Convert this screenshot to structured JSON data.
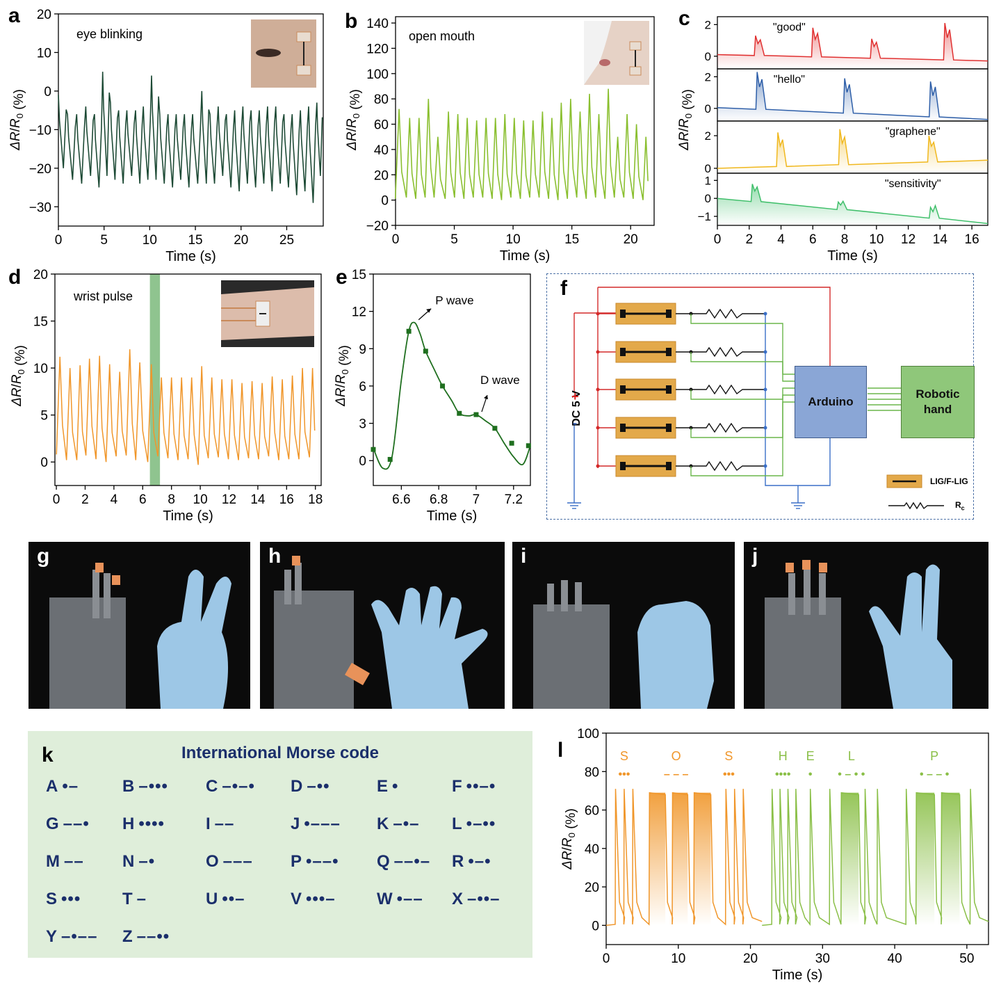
{
  "panel_letters": {
    "a": "a",
    "b": "b",
    "c": "c",
    "d": "d",
    "e": "e",
    "f": "f",
    "g": "g",
    "h": "h",
    "i": "i",
    "j": "j",
    "k": "k",
    "l": "l"
  },
  "chart_data": [
    {
      "id": "a",
      "type": "line",
      "annotation": "eye blinking",
      "xlabel": "Time (s)",
      "ylabel": "ΔR/R0 (%)",
      "xlim": [
        0,
        29
      ],
      "ylim": [
        -35,
        20
      ],
      "xticks": [
        0,
        5,
        10,
        15,
        20,
        25
      ],
      "yticks": [
        -30,
        -20,
        -10,
        0,
        10,
        20
      ],
      "ytick_labels": [
        "−30",
        "−20",
        "−10",
        "0",
        "10",
        "20"
      ],
      "color": "#1d4a35",
      "peak_times": [
        0,
        1.0,
        2.0,
        3.0,
        3.95,
        4.85,
        5.7,
        6.6,
        7.5,
        8.45,
        9.3,
        10.2,
        11.1,
        12.0,
        12.9,
        13.8,
        14.7,
        15.7,
        16.6,
        17.5,
        18.4,
        19.3,
        20.2,
        21.1,
        22.0,
        22.9,
        23.8,
        24.7,
        25.6,
        26.5,
        27.4,
        28.3
      ],
      "peak_values": [
        -1,
        -6,
        -6,
        -4,
        -6,
        5,
        -3,
        -5,
        -5,
        -5,
        -4,
        4,
        -6,
        -6,
        -6,
        -6,
        -6,
        0,
        -6,
        -4,
        -6,
        -5,
        -4,
        -5,
        -5,
        -4,
        -4,
        -6,
        -6,
        -5,
        -4,
        -3
      ],
      "trough_values": [
        -20,
        -23,
        -24,
        -22,
        -25,
        -22,
        -23,
        -24,
        -22,
        -24,
        -23,
        -23,
        -24,
        -25,
        -23,
        -25,
        -24,
        -24,
        -24,
        -22,
        -25,
        -26,
        -24,
        -25,
        -24,
        -26,
        -24,
        -25,
        -27,
        -26,
        -29,
        -22
      ]
    },
    {
      "id": "b",
      "type": "line",
      "annotation": "open mouth",
      "xlabel": "Time (s)",
      "ylabel": "ΔR/R0 (%)",
      "xlim": [
        0,
        22
      ],
      "ylim": [
        -20,
        145
      ],
      "xticks": [
        0,
        5,
        10,
        15,
        20
      ],
      "yticks": [
        -20,
        0,
        20,
        40,
        60,
        80,
        100,
        120,
        140
      ],
      "ytick_labels": [
        "−20",
        "0",
        "20",
        "40",
        "60",
        "80",
        "100",
        "120",
        "140"
      ],
      "color": "#8abf2f",
      "peak_times": [
        0.3,
        1.2,
        2.0,
        2.8,
        3.6,
        4.5,
        5.3,
        6.1,
        6.9,
        7.7,
        8.5,
        9.3,
        10.1,
        10.9,
        11.7,
        12.5,
        13.3,
        14.1,
        14.9,
        15.7,
        16.5,
        17.3,
        18.1,
        18.9,
        19.7,
        20.5,
        21.3
      ],
      "peak_values": [
        72,
        65,
        65,
        80,
        50,
        70,
        68,
        65,
        63,
        65,
        65,
        68,
        65,
        63,
        63,
        70,
        65,
        77,
        80,
        70,
        84,
        68,
        88,
        50,
        68,
        60,
        50
      ],
      "trough_values": [
        1,
        2,
        1,
        2,
        2,
        1,
        2,
        1,
        2,
        2,
        1,
        0,
        2,
        1,
        2,
        2,
        1,
        0,
        1,
        2,
        1,
        2,
        1,
        2,
        2,
        1,
        0
      ]
    },
    {
      "id": "c",
      "type": "line",
      "xlabel": "Time (s)",
      "ylabel": "ΔR/R0 (%)",
      "xlim": [
        0,
        17
      ],
      "xticks": [
        0,
        2,
        4,
        6,
        8,
        10,
        12,
        14,
        16
      ],
      "series": [
        {
          "name": "\"good\"",
          "color": "#e03030",
          "ylim": [
            -0.8,
            2.5
          ],
          "yticks": [
            0,
            2
          ],
          "baseline_start": 0.1,
          "baseline_end": -0.3,
          "events": [
            [
              2.4,
              1.3
            ],
            [
              6.0,
              1.8
            ],
            [
              9.7,
              1.1
            ],
            [
              14.3,
              2.1
            ]
          ]
        },
        {
          "name": "\"hello\"",
          "color": "#2d5ea8",
          "ylim": [
            -0.8,
            2.5
          ],
          "yticks": [
            0,
            2
          ],
          "baseline_start": 0.05,
          "baseline_end": -0.7,
          "events": [
            [
              2.5,
              2.3
            ],
            [
              8.0,
              1.9
            ],
            [
              13.4,
              1.7
            ]
          ]
        },
        {
          "name": "\"graphene\"",
          "color": "#f0b81e",
          "ylim": [
            -0.3,
            2.9
          ],
          "yticks": [
            0,
            2
          ],
          "baseline_start": 0.0,
          "baseline_end": 0.5,
          "events": [
            [
              3.8,
              2.2
            ],
            [
              7.7,
              2.4
            ],
            [
              13.3,
              2.0
            ]
          ]
        },
        {
          "name": "\"sensitivity\"",
          "color": "#3fbf6a",
          "ylim": [
            -1.5,
            1.4
          ],
          "yticks": [
            -1,
            0,
            1
          ],
          "yticks_labels": [
            "−1",
            "0",
            "1"
          ],
          "baseline_start": 0.0,
          "baseline_end": -1.4,
          "events": [
            [
              2.2,
              0.8
            ],
            [
              7.6,
              -0.2
            ],
            [
              13.4,
              -0.5
            ]
          ]
        }
      ]
    },
    {
      "id": "d",
      "type": "line",
      "annotation": "wrist pulse",
      "xlabel": "Time (s)",
      "ylabel": "ΔR/R0 (%)",
      "xlim": [
        -0.1,
        18.4
      ],
      "ylim": [
        -2.5,
        20
      ],
      "xticks": [
        0,
        2,
        4,
        6,
        8,
        10,
        12,
        14,
        16,
        18
      ],
      "yticks": [
        0,
        5,
        10,
        15,
        20
      ],
      "color": "#f0962a",
      "highlight_range": [
        6.5,
        7.2
      ],
      "peak_times": [
        0.25,
        0.95,
        1.65,
        2.3,
        3.0,
        3.7,
        4.4,
        5.1,
        5.8,
        6.6,
        7.3,
        8.0,
        8.7,
        9.4,
        10.1,
        10.8,
        11.5,
        12.2,
        12.9,
        13.6,
        14.3,
        15.0,
        15.7,
        16.4,
        17.1,
        17.8
      ],
      "peak_values": [
        11.2,
        10.0,
        10.3,
        11.0,
        11.3,
        10.4,
        9.6,
        12.0,
        10.6,
        10.4,
        9.0,
        9.0,
        9.0,
        9.0,
        10.2,
        9.0,
        8.8,
        8.8,
        8.4,
        8.6,
        8.4,
        9.1,
        8.8,
        9.2,
        10.0,
        10.0
      ],
      "trough_values": [
        0.8,
        0.2,
        0.2,
        0.7,
        0.3,
        0.0,
        0.6,
        0.7,
        0.2,
        0.0,
        0.6,
        0.4,
        0.2,
        0.3,
        -0.3,
        0.4,
        0.5,
        0.3,
        0.2,
        0.4,
        0.3,
        0.6,
        0.2,
        0.3,
        0.3,
        0.5
      ]
    },
    {
      "id": "e",
      "type": "line",
      "xlabel": "Time (s)",
      "ylabel": "ΔR/R0 (%)",
      "xlim": [
        6.45,
        7.29
      ],
      "ylim": [
        -2,
        15
      ],
      "xticks": [
        6.6,
        6.8,
        7.0,
        7.2
      ],
      "yticks": [
        0,
        3,
        6,
        9,
        12,
        15
      ],
      "color": "#1f6f1f",
      "x": [
        6.45,
        6.5,
        6.55,
        6.6,
        6.64,
        6.67,
        6.7,
        6.73,
        6.78,
        6.82,
        6.87,
        6.91,
        6.96,
        7.0,
        7.05,
        7.1,
        7.15,
        7.2,
        7.25,
        7.29
      ],
      "y": [
        1.0,
        -0.6,
        0.3,
        6.5,
        10.4,
        11.1,
        10.2,
        8.8,
        7.2,
        6.0,
        4.8,
        3.8,
        3.6,
        3.7,
        3.2,
        2.6,
        1.4,
        0.3,
        -0.3,
        1.2
      ],
      "markers_x": [
        6.45,
        6.54,
        6.64,
        6.73,
        6.82,
        6.91,
        7.0,
        7.1,
        7.19,
        7.28
      ],
      "markers_y": [
        0.9,
        0.1,
        10.4,
        8.8,
        6.0,
        3.8,
        3.7,
        2.6,
        1.4,
        1.2
      ],
      "annotations": [
        {
          "text": "P wave",
          "x": 6.67,
          "y": 11.1
        },
        {
          "text": "D wave",
          "x": 7.0,
          "y": 3.7
        }
      ]
    },
    {
      "id": "l",
      "type": "line",
      "xlabel": "Time (s)",
      "ylabel": "ΔR/R0 (%)",
      "xlim": [
        0,
        53
      ],
      "ylim": [
        -10,
        100
      ],
      "xticks": [
        0,
        10,
        20,
        30,
        40,
        50
      ],
      "yticks": [
        0,
        20,
        40,
        60,
        80,
        100
      ],
      "letters": [
        {
          "char": "S",
          "code": "•••",
          "x": 2.5,
          "color": "#f0962a"
        },
        {
          "char": "O",
          "code": "– – –",
          "x": 9.7,
          "color": "#f0962a"
        },
        {
          "char": "S",
          "code": "•••",
          "x": 17.0,
          "color": "#f0962a"
        },
        {
          "char": "H",
          "code": "••••",
          "x": 24.5,
          "color": "#8abf47"
        },
        {
          "char": "E",
          "code": "•",
          "x": 28.3,
          "color": "#8abf47"
        },
        {
          "char": "L",
          "code": "• – • •",
          "x": 34.0,
          "color": "#8abf47"
        },
        {
          "char": "P",
          "code": "• – – •",
          "x": 45.5,
          "color": "#8abf47"
        }
      ],
      "dots": [
        [
          1.3,
          71
        ],
        [
          2.5,
          71
        ],
        [
          3.7,
          71
        ],
        [
          16.6,
          71
        ],
        [
          17.8,
          71
        ],
        [
          19.0,
          71
        ],
        [
          23.0,
          71
        ],
        [
          24.1,
          71
        ],
        [
          25.2,
          71
        ],
        [
          26.3,
          71
        ],
        [
          28.3,
          71
        ],
        [
          31.0,
          71
        ],
        [
          35.9,
          71
        ],
        [
          37.6,
          71
        ],
        [
          41.6,
          71
        ],
        [
          50.5,
          71
        ]
      ],
      "dashes": [
        [
          6.0,
          8.2,
          69
        ],
        [
          9.2,
          11.3,
          69
        ],
        [
          12.2,
          14.5,
          69
        ],
        [
          32.6,
          35.0,
          69
        ],
        [
          43.0,
          45.5,
          69
        ],
        [
          46.5,
          49.0,
          69
        ]
      ],
      "orange_end": 21.6,
      "colors": {
        "orange": "#f0962a",
        "green": "#8abf47"
      }
    }
  ],
  "circuit": {
    "power_label": "DC 5 V",
    "plus": "+",
    "minus": "-",
    "arduino": "Arduino",
    "robotic_hand": "Robotic hand",
    "legend_lig": "LIG/F-LIG",
    "legend_rc": "R",
    "legend_rc_sub": "c"
  },
  "photos": [
    {
      "letter": "g"
    },
    {
      "letter": "h"
    },
    {
      "letter": "i"
    },
    {
      "letter": "j"
    }
  ],
  "morse": {
    "title": "International Morse code",
    "items": [
      {
        "l": "A",
        "c": "•–"
      },
      {
        "l": "B",
        "c": "–•••"
      },
      {
        "l": "C",
        "c": "–•–•"
      },
      {
        "l": "D",
        "c": "–••"
      },
      {
        "l": "E",
        "c": "•"
      },
      {
        "l": "F",
        "c": "••–•"
      },
      {
        "l": "G",
        "c": "––•"
      },
      {
        "l": "H",
        "c": "••••"
      },
      {
        "l": "I",
        "c": "––"
      },
      {
        "l": "J",
        "c": "•–––"
      },
      {
        "l": "K",
        "c": "–•–"
      },
      {
        "l": "L",
        "c": "•–••"
      },
      {
        "l": "M",
        "c": "––"
      },
      {
        "l": "N",
        "c": "–•"
      },
      {
        "l": "O",
        "c": "–––"
      },
      {
        "l": "P",
        "c": "•––•"
      },
      {
        "l": "Q",
        "c": "––•–"
      },
      {
        "l": "R",
        "c": "•–•"
      },
      {
        "l": "S",
        "c": "•••"
      },
      {
        "l": "T",
        "c": "–"
      },
      {
        "l": "U",
        "c": "••–"
      },
      {
        "l": "V",
        "c": "•••–"
      },
      {
        "l": "W",
        "c": "•––"
      },
      {
        "l": "X",
        "c": "–••–"
      },
      {
        "l": "Y",
        "c": "–•––"
      },
      {
        "l": "Z",
        "c": "––••"
      }
    ]
  }
}
